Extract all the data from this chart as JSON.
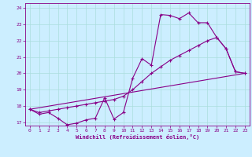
{
  "xlabel": "Windchill (Refroidissement éolien,°C)",
  "xlim_min": -0.5,
  "xlim_max": 23.5,
  "ylim_min": 16.8,
  "ylim_max": 24.3,
  "xticks": [
    0,
    1,
    2,
    3,
    4,
    5,
    6,
    7,
    8,
    9,
    10,
    11,
    12,
    13,
    14,
    15,
    16,
    17,
    18,
    19,
    20,
    21,
    22,
    23
  ],
  "yticks": [
    17,
    18,
    19,
    20,
    21,
    22,
    23,
    24
  ],
  "bg_color": "#cceeff",
  "line_color": "#880088",
  "grid_color": "#aadddd",
  "line1_x": [
    0,
    1,
    2,
    3,
    4,
    5,
    6,
    7,
    8,
    9,
    10,
    11,
    12,
    13,
    14,
    15,
    16,
    17,
    18,
    19,
    20,
    21,
    22,
    23
  ],
  "line1_y": [
    17.8,
    17.5,
    17.6,
    17.25,
    16.85,
    16.95,
    17.15,
    17.25,
    18.5,
    17.2,
    17.6,
    19.7,
    20.9,
    20.5,
    23.6,
    23.55,
    23.35,
    23.7,
    23.1,
    23.1,
    22.2,
    21.5,
    20.1,
    20.0
  ],
  "line2_x": [
    0,
    1,
    2,
    3,
    4,
    5,
    6,
    7,
    8,
    9,
    10,
    11,
    12,
    13,
    14,
    15,
    16,
    17,
    18,
    19,
    20,
    21,
    22,
    23
  ],
  "line2_y": [
    17.8,
    17.6,
    17.7,
    17.8,
    17.9,
    18.0,
    18.1,
    18.2,
    18.3,
    18.4,
    18.6,
    19.0,
    19.5,
    20.0,
    20.4,
    20.8,
    21.1,
    21.4,
    21.7,
    22.0,
    22.2,
    21.5,
    20.1,
    20.0
  ],
  "line3_x": [
    0,
    23
  ],
  "line3_y": [
    17.8,
    20.0
  ]
}
